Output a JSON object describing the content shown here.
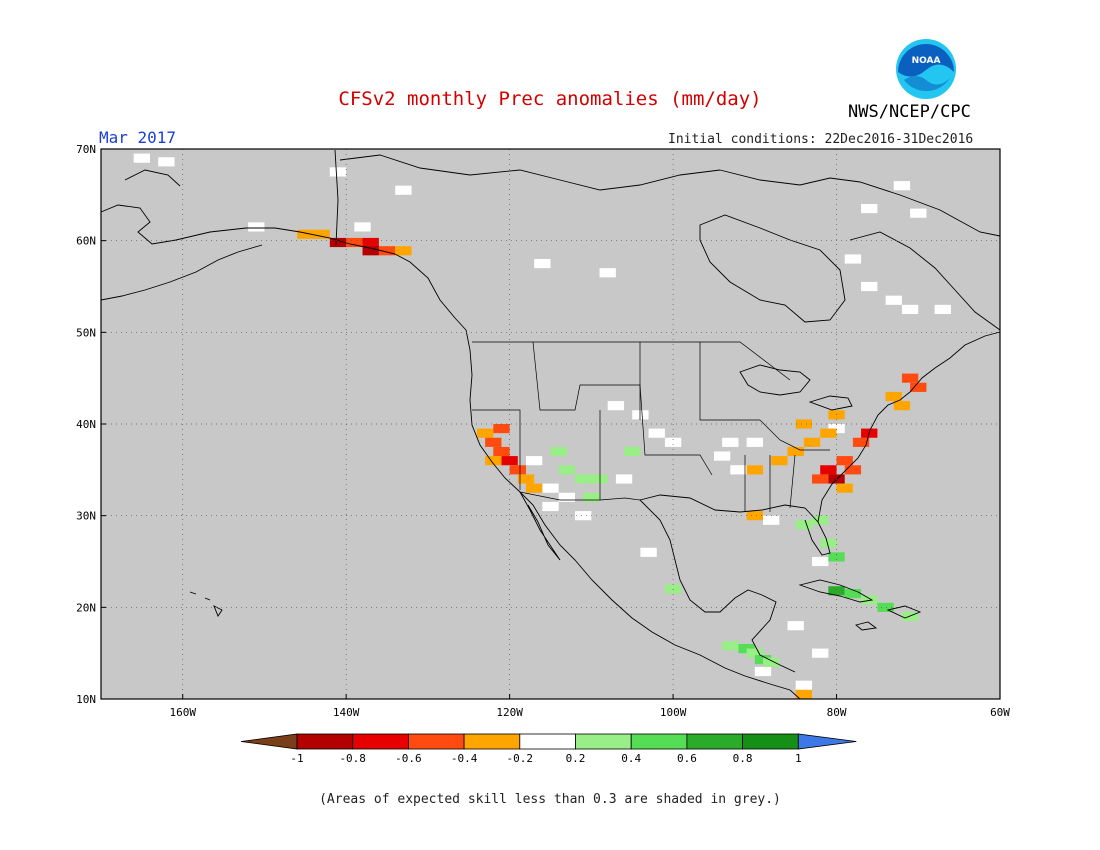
{
  "title": "CFSv2 monthly Prec anomalies (mm/day)",
  "agency": "NWS/NCEP/CPC",
  "logo_text": "NOAA",
  "month": "Mar 2017",
  "initial_conditions": "Initial conditions: 22Dec2016-31Dec2016",
  "footnote": "(Areas of expected skill less than 0.3 are shaded in grey.)",
  "map": {
    "lon_range": [
      -170,
      -60
    ],
    "lat_range": [
      10,
      70
    ],
    "ocean_color": "#c8c8c8",
    "lat_ticks": [
      {
        "value": 70,
        "label": "70N"
      },
      {
        "value": 60,
        "label": "60N"
      },
      {
        "value": 50,
        "label": "50N"
      },
      {
        "value": 40,
        "label": "40N"
      },
      {
        "value": 30,
        "label": "30N"
      },
      {
        "value": 20,
        "label": "20N"
      },
      {
        "value": 10,
        "label": "10N"
      }
    ],
    "lon_ticks": [
      {
        "value": -160,
        "label": "160W"
      },
      {
        "value": -140,
        "label": "140W"
      },
      {
        "value": -120,
        "label": "120W"
      },
      {
        "value": -100,
        "label": "100W"
      },
      {
        "value": -80,
        "label": "80W"
      },
      {
        "value": -60,
        "label": "60W"
      }
    ],
    "anomaly_cells": [
      {
        "lon": -145,
        "lat": 60.7,
        "cls": -0.3
      },
      {
        "lon": -143,
        "lat": 60.7,
        "cls": -0.3
      },
      {
        "lon": -141,
        "lat": 59.8,
        "cls": -0.9
      },
      {
        "lon": -139,
        "lat": 59.8,
        "cls": -0.5
      },
      {
        "lon": -137,
        "lat": 59.8,
        "cls": -0.7
      },
      {
        "lon": -135,
        "lat": 58.9,
        "cls": -0.5
      },
      {
        "lon": -133,
        "lat": 58.9,
        "cls": -0.3
      },
      {
        "lon": -137,
        "lat": 58.9,
        "cls": -0.9
      },
      {
        "lon": -123,
        "lat": 39.0,
        "cls": -0.3
      },
      {
        "lon": -122,
        "lat": 38.0,
        "cls": -0.5
      },
      {
        "lon": -121,
        "lat": 37.0,
        "cls": -0.5
      },
      {
        "lon": -120,
        "lat": 36.0,
        "cls": -0.7
      },
      {
        "lon": -119,
        "lat": 35.0,
        "cls": -0.5
      },
      {
        "lon": -118,
        "lat": 34.0,
        "cls": -0.3
      },
      {
        "lon": -121,
        "lat": 39.5,
        "cls": -0.5
      },
      {
        "lon": -122,
        "lat": 36.0,
        "cls": -0.3
      },
      {
        "lon": -117,
        "lat": 33.0,
        "cls": -0.3
      },
      {
        "lon": -90,
        "lat": 35.0,
        "cls": -0.3
      },
      {
        "lon": -87,
        "lat": 36.0,
        "cls": -0.3
      },
      {
        "lon": -85,
        "lat": 37.0,
        "cls": -0.3
      },
      {
        "lon": -83,
        "lat": 38.0,
        "cls": -0.3
      },
      {
        "lon": -81,
        "lat": 39.0,
        "cls": -0.3
      },
      {
        "lon": -79,
        "lat": 36.0,
        "cls": -0.5
      },
      {
        "lon": -81,
        "lat": 35.0,
        "cls": -0.7
      },
      {
        "lon": -80,
        "lat": 34.0,
        "cls": -0.9
      },
      {
        "lon": -78,
        "lat": 35.0,
        "cls": -0.5
      },
      {
        "lon": -82,
        "lat": 34.0,
        "cls": -0.5
      },
      {
        "lon": -79,
        "lat": 33.0,
        "cls": -0.3
      },
      {
        "lon": -77,
        "lat": 38.0,
        "cls": -0.5
      },
      {
        "lon": -76,
        "lat": 39.0,
        "cls": -0.7
      },
      {
        "lon": -80,
        "lat": 41.0,
        "cls": -0.3
      },
      {
        "lon": -84,
        "lat": 40.0,
        "cls": -0.3
      },
      {
        "lon": -72,
        "lat": 42.0,
        "cls": -0.3
      },
      {
        "lon": -70,
        "lat": 44.0,
        "cls": -0.5
      },
      {
        "lon": -71,
        "lat": 45.0,
        "cls": -0.5
      },
      {
        "lon": -73,
        "lat": 43.0,
        "cls": -0.3
      },
      {
        "lon": -90,
        "lat": 30.0,
        "cls": -0.3
      },
      {
        "lon": -113,
        "lat": 35.0,
        "cls": 0.3
      },
      {
        "lon": -111,
        "lat": 34.0,
        "cls": 0.3
      },
      {
        "lon": -109,
        "lat": 34.0,
        "cls": 0.3
      },
      {
        "lon": -110,
        "lat": 32.0,
        "cls": 0.3
      },
      {
        "lon": -114,
        "lat": 37.0,
        "cls": 0.3
      },
      {
        "lon": -105,
        "lat": 37.0,
        "cls": 0.3
      },
      {
        "lon": -84,
        "lat": 29.0,
        "cls": 0.3
      },
      {
        "lon": -82,
        "lat": 29.5,
        "cls": 0.3
      },
      {
        "lon": -81,
        "lat": 27.0,
        "cls": 0.3
      },
      {
        "lon": -80,
        "lat": 25.5,
        "cls": 0.5
      },
      {
        "lon": -80,
        "lat": 21.8,
        "cls": 0.7
      },
      {
        "lon": -78,
        "lat": 21.5,
        "cls": 0.5
      },
      {
        "lon": -76,
        "lat": 20.8,
        "cls": 0.3
      },
      {
        "lon": -74,
        "lat": 20.0,
        "cls": 0.5
      },
      {
        "lon": -71,
        "lat": 19.0,
        "cls": 0.3
      },
      {
        "lon": -91,
        "lat": 15.5,
        "cls": 0.5
      },
      {
        "lon": -90,
        "lat": 15.0,
        "cls": 0.3
      },
      {
        "lon": -89,
        "lat": 14.3,
        "cls": 0.5
      },
      {
        "lon": -93,
        "lat": 15.8,
        "cls": 0.3
      },
      {
        "lon": -88,
        "lat": 14.0,
        "cls": 0.3
      },
      {
        "lon": -100,
        "lat": 22.0,
        "cls": 0.3
      },
      {
        "lon": -84,
        "lat": 10.5,
        "cls": -0.3
      }
    ],
    "neutral_cells": [
      {
        "lon": -165,
        "lat": 69.0
      },
      {
        "lon": -162,
        "lat": 68.6
      },
      {
        "lon": -141,
        "lat": 67.5
      },
      {
        "lon": -133,
        "lat": 65.5
      },
      {
        "lon": -138,
        "lat": 61.5
      },
      {
        "lon": -151,
        "lat": 61.5
      },
      {
        "lon": -116,
        "lat": 57.5
      },
      {
        "lon": -108,
        "lat": 56.5
      },
      {
        "lon": -78,
        "lat": 58.0
      },
      {
        "lon": -76,
        "lat": 55.0
      },
      {
        "lon": -73,
        "lat": 53.5
      },
      {
        "lon": -71,
        "lat": 52.5
      },
      {
        "lon": -67,
        "lat": 52.5
      },
      {
        "lon": -76,
        "lat": 63.5
      },
      {
        "lon": -72,
        "lat": 66.0
      },
      {
        "lon": -70,
        "lat": 63.0
      },
      {
        "lon": -107,
        "lat": 42.0
      },
      {
        "lon": -104,
        "lat": 41.0
      },
      {
        "lon": -102,
        "lat": 39.0
      },
      {
        "lon": -100,
        "lat": 38.0
      },
      {
        "lon": -117,
        "lat": 36.0
      },
      {
        "lon": -115,
        "lat": 33.0
      },
      {
        "lon": -113,
        "lat": 32.0
      },
      {
        "lon": -111,
        "lat": 30.0
      },
      {
        "lon": -115,
        "lat": 31.0
      },
      {
        "lon": -106,
        "lat": 34.0
      },
      {
        "lon": -93,
        "lat": 38.0
      },
      {
        "lon": -94,
        "lat": 36.5
      },
      {
        "lon": -90,
        "lat": 38.0
      },
      {
        "lon": -92,
        "lat": 35.0
      },
      {
        "lon": -103,
        "lat": 26.0
      },
      {
        "lon": -80,
        "lat": 39.5
      },
      {
        "lon": -88,
        "lat": 29.5
      },
      {
        "lon": -82,
        "lat": 25.0
      },
      {
        "lon": -85,
        "lat": 18.0
      },
      {
        "lon": -82,
        "lat": 15.0
      },
      {
        "lon": -89,
        "lat": 13.0
      },
      {
        "lon": -84,
        "lat": 11.5
      }
    ]
  },
  "colorbar": {
    "bins": [
      {
        "color": "#b30000",
        "upper": -0.8
      },
      {
        "color": "#e60000",
        "upper": -0.6
      },
      {
        "color": "#ff4b0f",
        "upper": -0.4
      },
      {
        "color": "#ffa500",
        "upper": -0.2
      },
      {
        "color": "#ffffff",
        "upper": 0.2
      },
      {
        "color": "#99ee88",
        "upper": 0.4
      },
      {
        "color": "#55dd55",
        "upper": 0.6
      },
      {
        "color": "#2aab2a",
        "upper": 0.8
      },
      {
        "color": "#168f16",
        "upper": 1.0
      }
    ],
    "below_color": "#7a3f19",
    "above_color": "#3c78e6",
    "tick_labels": [
      "-1",
      "-0.8",
      "-0.6",
      "-0.4",
      "-0.2",
      "0.2",
      "0.4",
      "0.6",
      "0.8",
      "1"
    ]
  },
  "colors": {
    "title": "#d40000",
    "month": "#1a3fd6",
    "grey_mask": "#c8c8c8",
    "logo_blue": "#0b5fbf",
    "logo_cyan": "#22c6f0"
  }
}
